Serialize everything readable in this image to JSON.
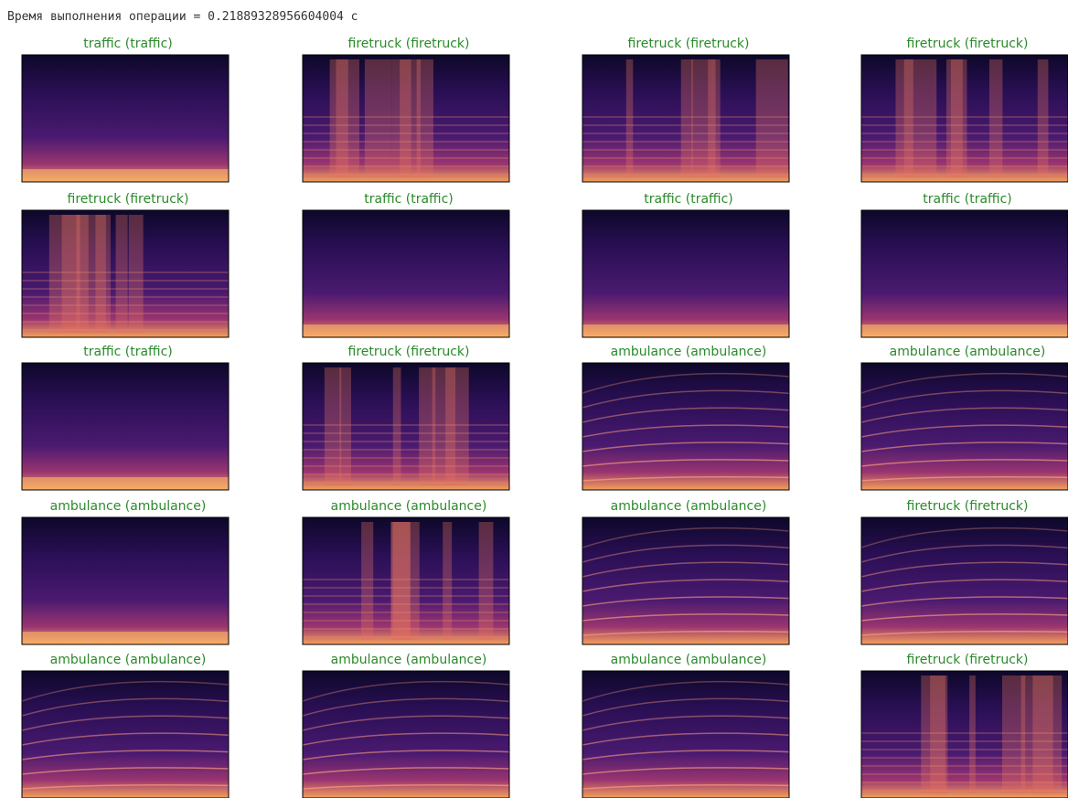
{
  "header": {
    "text": "Время выполнения операции =  0.21889328956604004  с"
  },
  "grid": [
    [
      "traffic (traffic)",
      "firetruck (firetruck)",
      "firetruck (firetruck)",
      "firetruck (firetruck)"
    ],
    [
      "firetruck (firetruck)",
      "traffic (traffic)",
      "traffic (traffic)",
      "traffic (traffic)"
    ],
    [
      "traffic (traffic)",
      "firetruck (firetruck)",
      "ambulance (ambulance)",
      "ambulance (ambulance)"
    ],
    [
      "ambulance (ambulance)",
      "ambulance (ambulance)",
      "ambulance (ambulance)",
      "firetruck (firetruck)"
    ],
    [
      "ambulance (ambulance)",
      "ambulance (ambulance)",
      "ambulance (ambulance)",
      "firetruck (firetruck)"
    ]
  ]
}
